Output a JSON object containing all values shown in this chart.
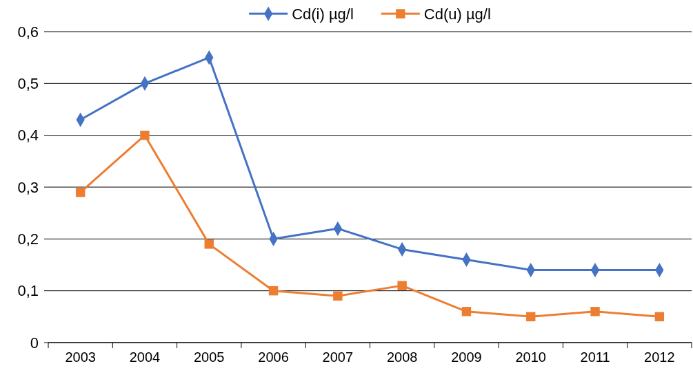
{
  "chart_data": {
    "type": "line",
    "categories": [
      "2003",
      "2004",
      "2005",
      "2006",
      "2007",
      "2008",
      "2009",
      "2010",
      "2011",
      "2012"
    ],
    "series": [
      {
        "name": "Cd(i) µg/l",
        "color": "#4472c4",
        "marker": "diamond",
        "values": [
          0.43,
          0.5,
          0.55,
          0.2,
          0.22,
          0.18,
          0.16,
          0.14,
          0.14,
          0.14
        ]
      },
      {
        "name": "Cd(u) µg/l",
        "color": "#ed7d31",
        "marker": "square",
        "values": [
          0.29,
          0.4,
          0.19,
          0.1,
          0.09,
          0.11,
          0.06,
          0.05,
          0.06,
          0.05
        ]
      }
    ],
    "ylim": [
      0,
      0.6
    ],
    "yticks": [
      {
        "value": 0,
        "label": "0"
      },
      {
        "value": 0.1,
        "label": "0,1"
      },
      {
        "value": 0.2,
        "label": "0,2"
      },
      {
        "value": 0.3,
        "label": "0,3"
      },
      {
        "value": 0.4,
        "label": "0,4"
      },
      {
        "value": 0.5,
        "label": "0,5"
      },
      {
        "value": 0.6,
        "label": "0,6"
      }
    ],
    "grid": "y",
    "legend": "top",
    "line_style": "solid"
  }
}
